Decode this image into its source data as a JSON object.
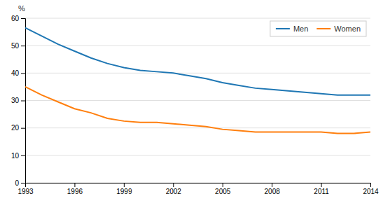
{
  "chart_data": {
    "type": "line",
    "x": [
      1993,
      1994,
      1995,
      1996,
      1997,
      1998,
      1999,
      2000,
      2001,
      2002,
      2003,
      2004,
      2005,
      2006,
      2007,
      2008,
      2009,
      2010,
      2011,
      2012,
      2013,
      2014
    ],
    "series": [
      {
        "name": "Men",
        "values": [
          56.5,
          53.5,
          50.5,
          48.0,
          45.5,
          43.5,
          42.0,
          41.0,
          40.5,
          40.0,
          39.0,
          38.0,
          36.5,
          35.5,
          34.5,
          34.0,
          33.5,
          33.0,
          32.5,
          32.0,
          32.0,
          32.0
        ]
      },
      {
        "name": "Women",
        "values": [
          35.0,
          32.0,
          29.5,
          27.0,
          25.5,
          23.5,
          22.5,
          22.0,
          22.0,
          21.5,
          21.0,
          20.5,
          19.5,
          19.0,
          18.5,
          18.5,
          18.5,
          18.5,
          18.5,
          18.0,
          18.0,
          18.5
        ]
      }
    ],
    "xlim": [
      1993,
      2014
    ],
    "xticks": [
      1993,
      1996,
      1999,
      2002,
      2005,
      2008,
      2011,
      2014
    ],
    "ylim": [
      0,
      60
    ],
    "yticks": [
      0,
      10,
      20,
      30,
      40,
      50,
      60
    ],
    "y_label": "%",
    "grid": true,
    "legend": "upper right"
  }
}
